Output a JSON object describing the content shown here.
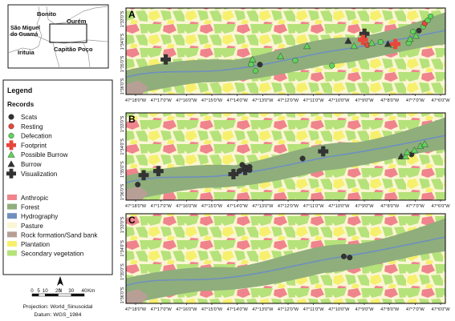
{
  "inset_map": {
    "labels": [
      "Bonito",
      "Ourém",
      "São Miguel do Guamá",
      "Capitão Poço",
      "Irituia"
    ]
  },
  "legend": {
    "title": "Legend",
    "records_title": "Records",
    "records": [
      {
        "label": "Scats",
        "symbol": "circle",
        "color": "#333333"
      },
      {
        "label": "Resting",
        "symbol": "circle",
        "color": "#e8463c"
      },
      {
        "label": "Defecation",
        "symbol": "circle",
        "color": "#5ed45a"
      },
      {
        "label": "Footprint",
        "symbol": "cross",
        "color": "#e8463c"
      },
      {
        "label": "Possible Burrow",
        "symbol": "triangle",
        "color": "#5ed45a"
      },
      {
        "label": "Burrow",
        "symbol": "triangle",
        "color": "#333333"
      },
      {
        "label": "Visualization",
        "symbol": "cross",
        "color": "#333333"
      }
    ],
    "landcover": [
      {
        "label": "Anthropic",
        "color": "#f0848c"
      },
      {
        "label": "Forest",
        "color": "#8fae7c"
      },
      {
        "label": "Hydrography",
        "color": "#6f8fbf"
      },
      {
        "label": "Pasture",
        "color": "#fbf6d3"
      },
      {
        "label": "Rock formation/Sand bank",
        "color": "#b89f96"
      },
      {
        "label": "Plantation",
        "color": "#f6f06e"
      },
      {
        "label": "Secondary vegetation",
        "color": "#b5e27a"
      }
    ]
  },
  "scale_bar": {
    "ticks": [
      "0",
      "5",
      "10",
      "20",
      "30",
      "40"
    ],
    "unit": "Km",
    "north": "N",
    "projection": "Projection: World_Sinusoidal",
    "datum": "Datum: WGS_1984"
  },
  "panels": [
    {
      "letter": "A",
      "lon_labels": [
        "47°18'0\"W",
        "47°17'0\"W",
        "47°16'0\"W",
        "47°15'0\"W",
        "47°14'0\"W",
        "47°13'0\"W",
        "47°12'0\"W",
        "47°11'0\"W",
        "47°10'0\"W",
        "47°9'0\"W",
        "47°8'0\"W",
        "47°7'0\"W",
        "47°6'0\"W"
      ],
      "lat_labels": [
        "1°33'0\"S",
        "1°34'0\"S",
        "1°35'0\"S",
        "1°36'0\"S"
      ],
      "records": [
        {
          "type": "Visualization",
          "lon": -47.283,
          "lat": -1.598
        },
        {
          "type": "Defecation",
          "lon": -47.225,
          "lat": -1.603
        },
        {
          "type": "Possible Burrow",
          "lon": -47.224,
          "lat": -1.598
        },
        {
          "type": "Defecation",
          "lon": -47.222,
          "lat": -1.609
        },
        {
          "type": "Scats",
          "lon": -47.219,
          "lat": -1.603
        },
        {
          "type": "Possible Burrow",
          "lon": -47.205,
          "lat": -1.595
        },
        {
          "type": "Defecation",
          "lon": -47.195,
          "lat": -1.599
        },
        {
          "type": "Possible Burrow",
          "lon": -47.187,
          "lat": -1.585
        },
        {
          "type": "Defecation",
          "lon": -47.17,
          "lat": -1.604
        },
        {
          "type": "Burrow",
          "lon": -47.159,
          "lat": -1.58
        },
        {
          "type": "Possible Burrow",
          "lon": -47.155,
          "lat": -1.585
        },
        {
          "type": "Visualization",
          "lon": -47.148,
          "lat": -1.573
        },
        {
          "type": "Footprint",
          "lon": -47.149,
          "lat": -1.579
        },
        {
          "type": "Resting",
          "lon": -47.146,
          "lat": -1.584
        },
        {
          "type": "Possible Burrow",
          "lon": -47.143,
          "lat": -1.582
        },
        {
          "type": "Defecation",
          "lon": -47.137,
          "lat": -1.581
        },
        {
          "type": "Burrow",
          "lon": -47.132,
          "lat": -1.583
        },
        {
          "type": "Possible Burrow",
          "lon": -47.128,
          "lat": -1.584
        },
        {
          "type": "Footprint",
          "lon": -47.127,
          "lat": -1.583
        },
        {
          "type": "Defecation",
          "lon": -47.118,
          "lat": -1.582
        },
        {
          "type": "Possible Burrow",
          "lon": -47.117,
          "lat": -1.578
        },
        {
          "type": "Defecation",
          "lon": -47.115,
          "lat": -1.571
        },
        {
          "type": "Possible Burrow",
          "lon": -47.113,
          "lat": -1.575
        },
        {
          "type": "Scats",
          "lon": -47.111,
          "lat": -1.57
        },
        {
          "type": "Defecation",
          "lon": -47.108,
          "lat": -1.566
        },
        {
          "type": "Resting",
          "lon": -47.107,
          "lat": -1.563
        },
        {
          "type": "Defecation",
          "lon": -47.105,
          "lat": -1.56
        },
        {
          "type": "Defecation",
          "lon": -47.103,
          "lat": -1.556
        },
        {
          "type": "Possible Burrow",
          "lon": -47.073,
          "lat": -1.558
        }
      ]
    },
    {
      "letter": "B",
      "lon_labels": [
        "47°18'0\"W",
        "47°17'0\"W",
        "47°16'0\"W",
        "47°15'0\"W",
        "47°14'0\"W",
        "47°13'0\"W",
        "47°12'0\"W",
        "47°11'0\"W",
        "47°10'0\"W",
        "47°9'0\"W",
        "47°8'0\"W",
        "47°7'0\"W",
        "47°6'0\"W"
      ],
      "lat_labels": [
        "1°33'0\"S",
        "1°34'0\"S",
        "1°35'0\"S",
        "1°36'0\"S"
      ],
      "records": [
        {
          "type": "Scats",
          "lon": -47.302,
          "lat": -1.617
        },
        {
          "type": "Visualization",
          "lon": -47.298,
          "lat": -1.608
        },
        {
          "type": "Visualization",
          "lon": -47.288,
          "lat": -1.604
        },
        {
          "type": "Visualization",
          "lon": -47.237,
          "lat": -1.607
        },
        {
          "type": "Scats",
          "lon": -47.233,
          "lat": -1.604
        },
        {
          "type": "Visualization",
          "lon": -47.229,
          "lat": -1.603
        },
        {
          "type": "Scats",
          "lon": -47.229,
          "lat": -1.601
        },
        {
          "type": "Scats",
          "lon": -47.226,
          "lat": -1.6
        },
        {
          "type": "Scats",
          "lon": -47.226,
          "lat": -1.603
        },
        {
          "type": "Scats",
          "lon": -47.231,
          "lat": -1.598
        },
        {
          "type": "Scats",
          "lon": -47.19,
          "lat": -1.592
        },
        {
          "type": "Visualization",
          "lon": -47.176,
          "lat": -1.585
        },
        {
          "type": "Burrow",
          "lon": -47.123,
          "lat": -1.59
        },
        {
          "type": "Possible Burrow",
          "lon": -47.12,
          "lat": -1.59
        },
        {
          "type": "Scats",
          "lon": -47.116,
          "lat": -1.588
        },
        {
          "type": "Possible Burrow",
          "lon": -47.114,
          "lat": -1.584
        },
        {
          "type": "Possible Burrow",
          "lon": -47.11,
          "lat": -1.58
        },
        {
          "type": "Possible Burrow",
          "lon": -47.107,
          "lat": -1.578
        },
        {
          "type": "Possible Burrow",
          "lon": -47.119,
          "lat": -1.586
        },
        {
          "type": "Burrow",
          "lon": -47.081,
          "lat": -1.568
        }
      ]
    },
    {
      "letter": "C",
      "lon_labels": [
        "47°18'0\"W",
        "47°17'0\"W",
        "47°16'0\"W",
        "47°15'0\"W",
        "47°14'0\"W",
        "47°13'0\"W",
        "47°12'0\"W",
        "47°11'0\"W",
        "47°10'0\"W",
        "47°9'0\"W",
        "47°8'0\"W",
        "47°7'0\"W",
        "47°6'0\"W"
      ],
      "lat_labels": [
        "1°33'0\"S",
        "1°34'0\"S",
        "1°35'0\"S",
        "1°36'0\"S"
      ],
      "records": [
        {
          "type": "Scats",
          "lon": -47.162,
          "lat": -1.588
        },
        {
          "type": "Scats",
          "lon": -47.158,
          "lat": -1.589
        }
      ]
    }
  ]
}
